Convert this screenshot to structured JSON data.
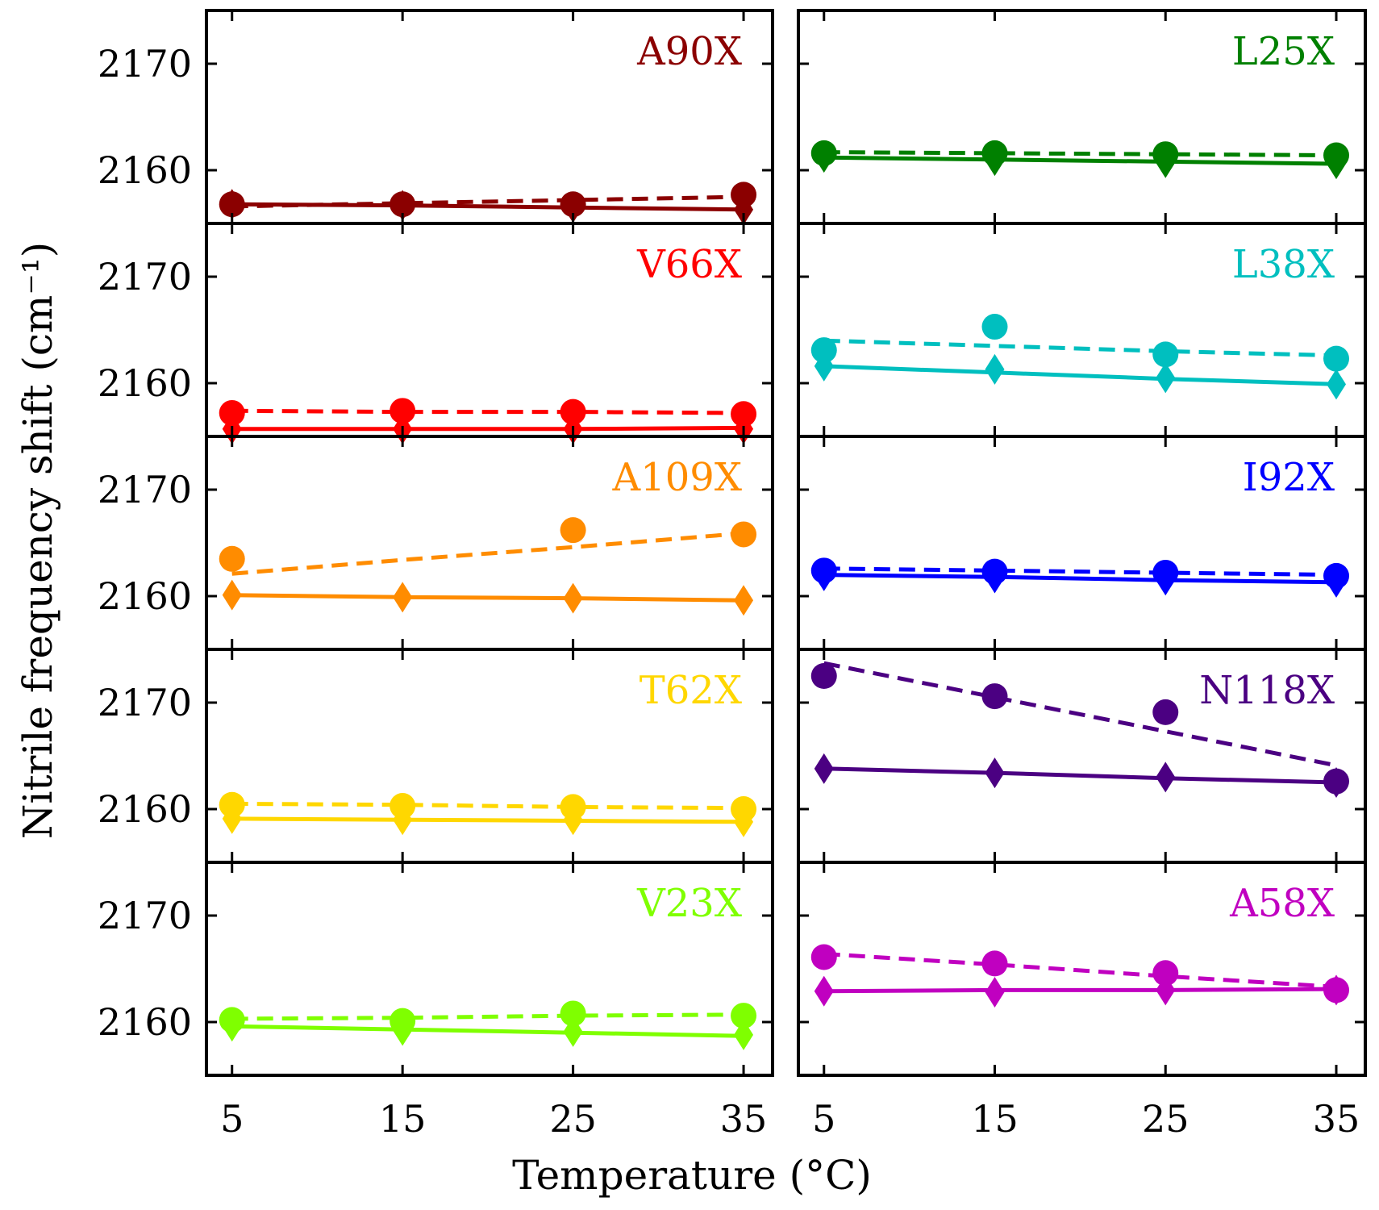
{
  "chart_data": {
    "type": "line",
    "xlabel": "Temperature (°C)",
    "ylabel": "Nitrile frequency shift (cm⁻¹)",
    "x": [
      5,
      15,
      25,
      35
    ],
    "xticks": [
      5,
      15,
      25,
      35
    ],
    "yticks": [
      2160,
      2170
    ],
    "ylim": [
      2155,
      2175
    ],
    "xlim": [
      3.5,
      36.7
    ],
    "grid": false,
    "legend": "none",
    "panels": [
      {
        "label": "A90X",
        "color": "#8b0000",
        "circles": [
          2156.8,
          2156.8,
          2156.8,
          2157.7
        ],
        "diamonds": [
          2156.8,
          2156.7,
          2156.5,
          2156.3
        ],
        "dashed_fit": [
          2156.6,
          2156.9,
          2157.2,
          2157.5
        ],
        "solid_fit": [
          2156.8,
          2156.7,
          2156.5,
          2156.3
        ]
      },
      {
        "label": "L25X",
        "color": "#008000",
        "circles": [
          2161.6,
          2161.6,
          2161.5,
          2161.4
        ],
        "diamonds": [
          2161.2,
          2160.9,
          2160.7,
          2160.6
        ],
        "dashed_fit": [
          2161.7,
          2161.6,
          2161.5,
          2161.4
        ],
        "solid_fit": [
          2161.2,
          2161.0,
          2160.8,
          2160.6
        ]
      },
      {
        "label": "V66X",
        "color": "#ff0000",
        "circles": [
          2157.2,
          2157.4,
          2157.3,
          2157.1
        ],
        "diamonds": [
          2155.7,
          2155.7,
          2155.7,
          2155.7
        ],
        "dashed_fit": [
          2157.4,
          2157.3,
          2157.3,
          2157.2
        ],
        "solid_fit": [
          2155.7,
          2155.7,
          2155.7,
          2155.8
        ]
      },
      {
        "label": "L38X",
        "color": "#00bfbf",
        "circles": [
          2163.1,
          2165.3,
          2162.7,
          2162.3
        ],
        "diamonds": [
          2161.6,
          2161.3,
          2160.5,
          2159.9
        ],
        "dashed_fit": [
          2164.0,
          2163.5,
          2163.0,
          2162.6
        ],
        "solid_fit": [
          2161.6,
          2161.0,
          2160.4,
          2159.9
        ]
      },
      {
        "label": "A109X",
        "color": "#ff8c00",
        "circles": [
          2163.5,
          null,
          2166.2,
          2165.8
        ],
        "diamonds": [
          2160.1,
          2159.9,
          2159.8,
          2159.6
        ],
        "dashed_fit": [
          2162.1,
          2163.4,
          2164.6,
          2165.9
        ],
        "solid_fit": [
          2160.1,
          2159.9,
          2159.8,
          2159.6
        ]
      },
      {
        "label": "I92X",
        "color": "#0000ff",
        "circles": [
          2162.4,
          2162.3,
          2162.2,
          2161.9
        ],
        "diamonds": [
          2161.9,
          2161.7,
          2161.5,
          2161.3
        ],
        "dashed_fit": [
          2162.6,
          2162.4,
          2162.2,
          2162.0
        ],
        "solid_fit": [
          2162.0,
          2161.8,
          2161.5,
          2161.3
        ]
      },
      {
        "label": "T62X",
        "color": "#ffd700",
        "circles": [
          2160.4,
          2160.3,
          2160.2,
          2160.0
        ],
        "diamonds": [
          2159.1,
          2159.0,
          2159.0,
          2158.8
        ],
        "dashed_fit": [
          2160.5,
          2160.4,
          2160.2,
          2160.1
        ],
        "solid_fit": [
          2159.1,
          2159.0,
          2158.9,
          2158.8
        ]
      },
      {
        "label": "N118X",
        "color": "#4b0082",
        "circles": [
          2172.5,
          2170.6,
          2169.1,
          2162.6
        ],
        "diamonds": [
          2163.8,
          2163.4,
          2163.0,
          2162.5
        ],
        "dashed_fit": [
          2173.7,
          2170.5,
          2167.3,
          2164.1
        ],
        "solid_fit": [
          2163.8,
          2163.4,
          2162.9,
          2162.5
        ]
      },
      {
        "label": "V23X",
        "color": "#7fff00",
        "circles": [
          2160.2,
          2160.1,
          2160.8,
          2160.6
        ],
        "diamonds": [
          2159.6,
          2159.2,
          2159.1,
          2158.8
        ],
        "dashed_fit": [
          2160.3,
          2160.4,
          2160.6,
          2160.7
        ],
        "solid_fit": [
          2159.6,
          2159.3,
          2159.0,
          2158.7
        ]
      },
      {
        "label": "A58X",
        "color": "#c000c0",
        "circles": [
          2166.1,
          2165.5,
          2164.6,
          2163.0
        ],
        "diamonds": [
          2162.9,
          2162.8,
          2163.0,
          2163.0
        ],
        "dashed_fit": [
          2166.4,
          2165.4,
          2164.3,
          2163.3
        ],
        "solid_fit": [
          2162.9,
          2163.0,
          2163.0,
          2163.1
        ]
      }
    ]
  }
}
